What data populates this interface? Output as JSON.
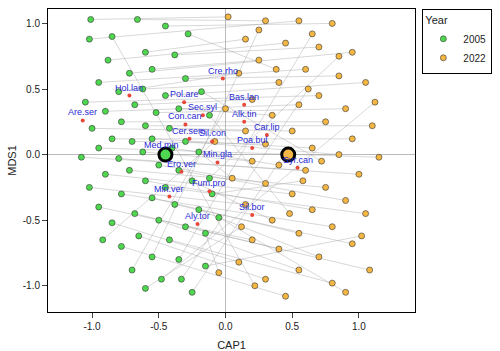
{
  "chart_data": {
    "type": "scatter",
    "xlabel": "CAP1",
    "ylabel": "MDS1",
    "xlim": [
      -1.33,
      1.42
    ],
    "ylim": [
      -1.2,
      1.11
    ],
    "xticks": [
      {
        "value": -1,
        "label": "-1.0"
      },
      {
        "value": -0.5,
        "label": "-0.5"
      },
      {
        "value": 0,
        "label": "0.0"
      },
      {
        "value": 0.5,
        "label": "0.5"
      },
      {
        "value": 1,
        "label": "1.0"
      }
    ],
    "yticks": [
      {
        "value": -1,
        "label": "-1.0"
      },
      {
        "value": -0.5,
        "label": "-0.5"
      },
      {
        "value": 0,
        "label": "0.0"
      },
      {
        "value": 0.5,
        "label": "0.5"
      },
      {
        "value": 1,
        "label": "1.0"
      }
    ],
    "grid": false,
    "legend": "right",
    "legend_title": "Year",
    "series": [
      {
        "name": "2005",
        "color": "#4fd84f",
        "centroid": {
          "x": -0.45,
          "y": 0.0
        },
        "x": [
          -1.01,
          -0.66,
          -1.02,
          -0.45,
          -0.6,
          -0.88,
          -0.38,
          -0.72,
          -0.55,
          -0.95,
          -0.3,
          -0.8,
          -0.62,
          -0.45,
          -1.05,
          -0.68,
          -0.9,
          -0.52,
          -0.35,
          -0.78,
          -0.6,
          -1.0,
          -0.42,
          -0.85,
          -0.7,
          -0.55,
          -0.3,
          -0.95,
          -0.62,
          -0.4,
          -1.08,
          -0.8,
          -0.2,
          -0.5,
          -0.72,
          -0.9,
          -0.35,
          -1.02,
          -0.6,
          -0.45,
          -0.25,
          -0.78,
          -0.55,
          -0.95,
          -0.38,
          -0.68,
          -0.2,
          -0.85,
          -0.5,
          -0.3,
          -0.65,
          -0.42,
          -0.78,
          -0.15,
          -0.55,
          -0.35,
          -0.7,
          -0.48,
          -0.25,
          -0.1,
          -0.12,
          -0.6,
          -0.28,
          -0.18,
          -0.15,
          -0.85,
          -0.33,
          -0.05,
          -0.92,
          -0.12
        ],
        "y": [
          1.03,
          1.03,
          0.88,
          0.98,
          0.78,
          0.72,
          0.76,
          0.62,
          0.65,
          0.55,
          0.58,
          0.48,
          0.5,
          0.45,
          0.4,
          0.38,
          0.33,
          0.32,
          0.35,
          0.25,
          0.22,
          0.2,
          0.2,
          0.12,
          0.1,
          0.12,
          0.1,
          0.05,
          0.02,
          0.05,
          -0.02,
          -0.03,
          0.02,
          -0.08,
          -0.12,
          -0.15,
          -0.12,
          -0.25,
          -0.2,
          -0.25,
          -0.2,
          -0.3,
          -0.33,
          -0.4,
          -0.38,
          -0.45,
          -0.42,
          -0.52,
          -0.5,
          -0.55,
          -0.62,
          -0.65,
          -0.7,
          -0.6,
          -0.78,
          -0.8,
          -0.88,
          -0.95,
          -1.05,
          -0.3,
          -0.18,
          -1.02,
          0.92,
          0.48,
          -0.85,
          0.9,
          -0.95,
          -0.48,
          -0.65,
          0.3
        ]
      },
      {
        "name": "2022",
        "color": "#f5b744",
        "centroid": {
          "x": 0.47,
          "y": 0.0
        },
        "x": [
          0.02,
          0.3,
          0.55,
          0.8,
          0.15,
          0.45,
          0.7,
          0.95,
          0.25,
          0.6,
          0.85,
          0.1,
          0.4,
          1.05,
          0.7,
          0.2,
          0.55,
          0.9,
          0.35,
          0.75,
          1.1,
          0.15,
          0.5,
          0.95,
          0.3,
          0.65,
          0.85,
          1.15,
          0.2,
          0.4,
          0.6,
          1.0,
          0.05,
          0.3,
          0.75,
          0.5,
          0.9,
          0.15,
          0.65,
          1.05,
          0.35,
          0.8,
          0.55,
          0.2,
          0.95,
          0.4,
          0.7,
          0.1,
          0.55,
          1.08,
          0.3,
          0.8,
          0.45,
          -0.05,
          0.25,
          0.65,
          0.0,
          1.12,
          0.45,
          0.58,
          0.85,
          0.12,
          0.38,
          0.72,
          1.02,
          0.22,
          0.62,
          0.9,
          -0.08,
          0.48
        ],
        "y": [
          1.05,
          1.02,
          1.02,
          1.0,
          0.88,
          0.85,
          0.82,
          0.78,
          0.72,
          0.65,
          0.6,
          0.62,
          0.55,
          0.55,
          0.45,
          0.42,
          0.38,
          0.35,
          0.3,
          0.25,
          0.22,
          0.18,
          0.18,
          0.12,
          0.08,
          0.05,
          0.0,
          -0.02,
          -0.05,
          -0.08,
          -0.12,
          -0.15,
          -0.18,
          -0.22,
          -0.25,
          -0.3,
          -0.35,
          -0.38,
          -0.42,
          -0.45,
          -0.5,
          -0.55,
          -0.6,
          -0.65,
          -0.68,
          -0.72,
          -0.78,
          -0.82,
          -0.88,
          -0.88,
          -0.95,
          -0.98,
          -1.08,
          -0.9,
          0.95,
          0.92,
          0.35,
          0.4,
          0.02,
          -0.2,
          0.75,
          -0.55,
          0.65,
          -0.05,
          -0.62,
          -1.0,
          0.5,
          -1.05,
          0.1,
          -0.45
        ]
      }
    ],
    "species": [
      {
        "name": "Cre.rho",
        "x": -0.02,
        "y": 0.58
      },
      {
        "name": "Hol.lan",
        "x": -0.72,
        "y": 0.45
      },
      {
        "name": "Pol.are",
        "x": -0.31,
        "y": 0.4
      },
      {
        "name": "Bas.lan",
        "x": 0.14,
        "y": 0.38
      },
      {
        "name": "Sec.syl",
        "x": -0.17,
        "y": 0.3
      },
      {
        "name": "Are.ser",
        "x": -1.07,
        "y": 0.26
      },
      {
        "name": "Con.can",
        "x": -0.3,
        "y": 0.23
      },
      {
        "name": "Alk.tin",
        "x": 0.14,
        "y": 0.25
      },
      {
        "name": "Car.lip",
        "x": 0.31,
        "y": 0.15
      },
      {
        "name": "Cer.sem",
        "x": -0.27,
        "y": 0.12
      },
      {
        "name": "Sil.con",
        "x": -0.1,
        "y": 0.1
      },
      {
        "name": "Poa.bul",
        "x": 0.2,
        "y": 0.05
      },
      {
        "name": "Med.min",
        "x": -0.48,
        "y": 0.01
      },
      {
        "name": "Min.gla",
        "x": -0.06,
        "y": -0.06
      },
      {
        "name": "Syr.can",
        "x": 0.54,
        "y": -0.1
      },
      {
        "name": "Ero.ver",
        "x": -0.33,
        "y": -0.13
      },
      {
        "name": "Fum.pro",
        "x": -0.12,
        "y": -0.28
      },
      {
        "name": "Min.ver",
        "x": -0.42,
        "y": -0.32
      },
      {
        "name": "Sil.bor",
        "x": 0.2,
        "y": -0.46
      },
      {
        "name": "Aly.tor",
        "x": -0.21,
        "y": -0.53
      }
    ]
  }
}
